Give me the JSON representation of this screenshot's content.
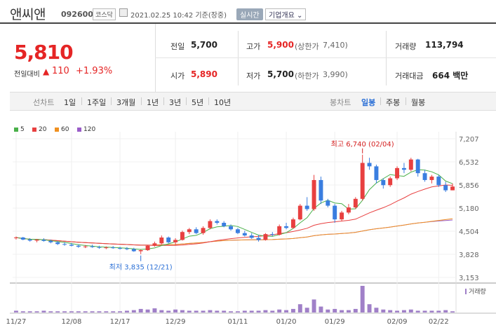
{
  "header": {
    "name": "앤씨앤",
    "code": "092600",
    "market_badge": "코스닥",
    "time": "2021.02.25 10:42 기준(장중)",
    "live_button": "실시간",
    "company_info_button": "기업개요"
  },
  "quote": {
    "price": "5,810",
    "change_label": "전일대비",
    "change_arrow": "▲",
    "change": "110",
    "change_pct": "+1.93%"
  },
  "stats": {
    "prev_label": "전일",
    "prev": "5,700",
    "high_label": "고가",
    "high": "5,900",
    "upper_limit_label": "(상한가",
    "upper_limit": "7,410)",
    "volume_label": "거래량",
    "volume": "113,794",
    "open_label": "시가",
    "open": "5,890",
    "low_label": "저가",
    "low": "5,700",
    "lower_limit_label": "(하한가",
    "lower_limit": "3,990)",
    "amount_label": "거래대금",
    "amount": "664 백만"
  },
  "toolbar": {
    "line_chart_label": "선차트",
    "ranges": [
      "1일",
      "1주일",
      "3개월",
      "1년",
      "3년",
      "5년",
      "10년"
    ],
    "candle_label": "봉차트",
    "candle_periods": [
      "일봉",
      "주봉",
      "월봉"
    ],
    "candle_active": "일봉"
  },
  "chart_data": {
    "type": "candlestick",
    "legend": [
      {
        "name": "5",
        "color": "#49b049"
      },
      {
        "name": "20",
        "color": "#e84040"
      },
      {
        "name": "60",
        "color": "#f09020"
      },
      {
        "name": "120",
        "color": "#9a5cc8"
      }
    ],
    "y_ticks": [
      "7,207",
      "6,532",
      "5,856",
      "5,180",
      "4,504",
      "3,828",
      "3,153"
    ],
    "y_range": [
      3153,
      7207
    ],
    "x_ticks": [
      "11/27",
      "12/08",
      "12/17",
      "12/29",
      "01/11",
      "01/20",
      "01/29",
      "02/09",
      "02/22"
    ],
    "annotation_high": "최고 6,740 (02/04)",
    "annotation_low": "최저 3,835 (12/21)",
    "volume_label": "거래량",
    "up_color": "#e84040",
    "down_color": "#3a7ee0",
    "candles": [
      [
        4300,
        4350,
        4260,
        4320
      ],
      [
        4320,
        4340,
        4240,
        4260
      ],
      [
        4260,
        4300,
        4200,
        4230
      ],
      [
        4230,
        4280,
        4180,
        4250
      ],
      [
        4250,
        4300,
        4200,
        4220
      ],
      [
        4220,
        4260,
        4150,
        4180
      ],
      [
        4180,
        4220,
        4100,
        4130
      ],
      [
        4130,
        4180,
        4080,
        4110
      ],
      [
        4110,
        4160,
        4060,
        4080
      ],
      [
        4080,
        4120,
        4020,
        4050
      ],
      [
        4050,
        4100,
        4010,
        4060
      ],
      [
        4060,
        4110,
        4020,
        4040
      ],
      [
        4040,
        4080,
        3990,
        4020
      ],
      [
        4020,
        4060,
        3980,
        4030
      ],
      [
        4030,
        4070,
        3990,
        4010
      ],
      [
        4010,
        4050,
        3970,
        4000
      ],
      [
        4000,
        4040,
        3950,
        3980
      ],
      [
        3980,
        4020,
        3900,
        3920
      ],
      [
        3920,
        3970,
        3835,
        3950
      ],
      [
        3950,
        4100,
        3930,
        4080
      ],
      [
        4080,
        4200,
        4050,
        4150
      ],
      [
        4150,
        4380,
        4120,
        4320
      ],
      [
        4320,
        4350,
        4150,
        4180
      ],
      [
        4180,
        4300,
        4100,
        4250
      ],
      [
        4250,
        4520,
        4230,
        4480
      ],
      [
        4480,
        4600,
        4420,
        4560
      ],
      [
        4560,
        4620,
        4420,
        4450
      ],
      [
        4450,
        4650,
        4400,
        4600
      ],
      [
        4600,
        4850,
        4560,
        4800
      ],
      [
        4800,
        4850,
        4700,
        4750
      ],
      [
        4750,
        4800,
        4620,
        4650
      ],
      [
        4650,
        4700,
        4520,
        4560
      ],
      [
        4560,
        4600,
        4420,
        4450
      ],
      [
        4450,
        4520,
        4350,
        4380
      ],
      [
        4380,
        4450,
        4280,
        4310
      ],
      [
        4310,
        4400,
        4200,
        4250
      ],
      [
        4250,
        4450,
        4230,
        4420
      ],
      [
        4420,
        4480,
        4360,
        4400
      ],
      [
        4400,
        4700,
        4380,
        4650
      ],
      [
        4650,
        4750,
        4560,
        4600
      ],
      [
        4600,
        4900,
        4580,
        4850
      ],
      [
        4850,
        5300,
        4820,
        5250
      ],
      [
        5250,
        5500,
        5100,
        5150
      ],
      [
        5150,
        6150,
        5100,
        6000
      ],
      [
        6000,
        6100,
        5300,
        5400
      ],
      [
        5400,
        5450,
        5200,
        5250
      ],
      [
        5250,
        5300,
        4750,
        4850
      ],
      [
        4850,
        5100,
        4800,
        5050
      ],
      [
        5050,
        5300,
        5000,
        5200
      ],
      [
        5200,
        5500,
        5150,
        5450
      ],
      [
        5450,
        6740,
        5400,
        6500
      ],
      [
        6500,
        6650,
        6300,
        6400
      ],
      [
        6400,
        6450,
        5900,
        6000
      ],
      [
        6000,
        6050,
        5750,
        5850
      ],
      [
        5850,
        6100,
        5800,
        6050
      ],
      [
        6050,
        6400,
        6000,
        6350
      ],
      [
        6350,
        6500,
        6200,
        6300
      ],
      [
        6300,
        6650,
        6250,
        6600
      ],
      [
        6600,
        6620,
        6100,
        6200
      ],
      [
        6200,
        6300,
        5950,
        6000
      ],
      [
        6000,
        6150,
        5900,
        6100
      ],
      [
        6100,
        6150,
        5800,
        5850
      ],
      [
        5850,
        5950,
        5650,
        5700
      ],
      [
        5700,
        5900,
        5700,
        5810
      ]
    ],
    "volume": [
      3,
      2,
      2,
      2,
      3,
      2,
      2,
      2,
      2,
      2,
      2,
      2,
      2,
      2,
      2,
      2,
      3,
      4,
      6,
      5,
      7,
      4,
      3,
      5,
      4,
      3,
      3,
      3,
      4,
      3,
      3,
      2,
      2,
      3,
      3,
      3,
      4,
      3,
      5,
      4,
      6,
      14,
      8,
      22,
      10,
      5,
      6,
      4,
      4,
      6,
      45,
      14,
      8,
      5,
      4,
      3,
      4,
      5,
      3,
      3,
      3,
      3,
      4,
      2
    ]
  }
}
